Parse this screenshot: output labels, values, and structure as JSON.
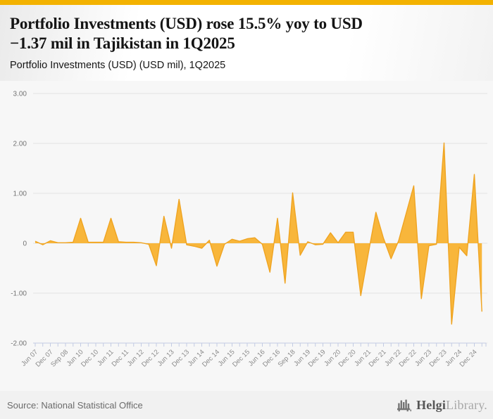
{
  "accent_color": "#F3B200",
  "header": {
    "title_line1": "Portfolio Investments (USD) rose 15.5% yoy to USD",
    "title_line2": "−1.37 mil in Tajikistan in 1Q2025",
    "subtitle": "Portfolio Investments (USD) (USD mil), 1Q2025"
  },
  "chart_data": {
    "type": "area",
    "title": "Portfolio Investments (USD) (USD mil), 1Q2025",
    "ylabel": "USD mil",
    "ylim": [
      -2.0,
      3.0
    ],
    "grid": true,
    "latest_value": -1.37,
    "latest_period": "1Q2025",
    "yoy_change": "15.5%",
    "points_per_label": 2,
    "categories": [
      "Jun 07",
      "Dec 07",
      "Sep 08",
      "Jun 10",
      "Dec 10",
      "Jun 11",
      "Dec 11",
      "Jun 12",
      "Dec 12",
      "Jun 13",
      "Dec 13",
      "Jun 14",
      "Dec 14",
      "Jun 15",
      "Dec 15",
      "Jun 16",
      "Dec 16",
      "Sep 18",
      "Jun 19",
      "Dec 19",
      "Jun 20",
      "Dec 20",
      "Jun 21",
      "Dec 21",
      "Jun 22",
      "Dec 22",
      "Jun 23",
      "Dec 23",
      "Jun 24",
      "Dec 24"
    ],
    "values": [
      0.04,
      -0.03,
      0.05,
      0.01,
      0.01,
      0.02,
      0.5,
      0.02,
      0.02,
      0.02,
      0.5,
      0.03,
      0.02,
      0.02,
      0.01,
      -0.02,
      -0.45,
      0.54,
      -0.1,
      0.88,
      -0.03,
      -0.06,
      -0.1,
      0.06,
      -0.46,
      -0.02,
      0.08,
      0.04,
      0.09,
      0.11,
      -0.02,
      -0.58,
      0.5,
      -0.8,
      1.01,
      -0.24,
      0.03,
      -0.03,
      -0.02,
      0.21,
      0.01,
      0.22,
      0.22,
      -1.05,
      -0.2,
      0.62,
      0.1,
      -0.31,
      0.05,
      0.6,
      1.15,
      -1.11,
      -0.05,
      -0.02,
      2.01,
      -1.62,
      -0.08,
      -0.25,
      1.38,
      -1.37
    ],
    "y_ticks": [
      {
        "value": 3,
        "label": "3.00"
      },
      {
        "value": 2,
        "label": "2.00"
      },
      {
        "value": 1,
        "label": "1.00"
      },
      {
        "value": 0,
        "label": "0"
      },
      {
        "value": -1,
        "label": "-1.00"
      },
      {
        "value": -2,
        "label": "-2.00"
      }
    ],
    "colors": {
      "fill": "#F8B63B",
      "stroke": "#EFA422",
      "grid": "#e3e3e3",
      "axis": "#c3cbe3",
      "x_text": "#8a8a8a",
      "y_text": "#737373"
    }
  },
  "footer": {
    "source": "Source: National Statistical Office",
    "logo": {
      "dark": "Helgi",
      "light": "Library."
    }
  }
}
